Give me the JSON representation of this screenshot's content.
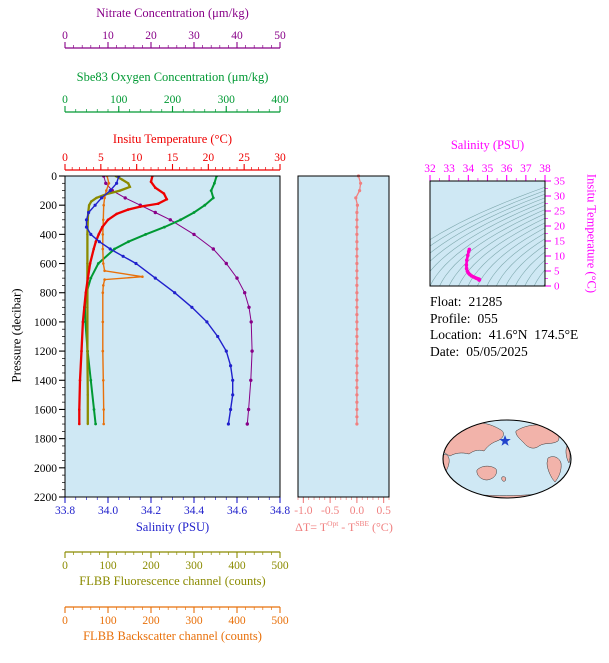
{
  "figure": {
    "bg": "#ffffff",
    "plot_bg": "#cfe8f4",
    "border": "#000000"
  },
  "axes": {
    "nitrate": {
      "title": "Nitrate Concentration (μm/kg)",
      "color": "#880088",
      "range": [
        0,
        50
      ],
      "minor": 2,
      "tick_values": [
        0,
        10,
        20,
        30,
        40,
        50
      ],
      "tick_labels": [
        "0",
        "10",
        "20",
        "30",
        "40",
        "50"
      ]
    },
    "oxygen": {
      "title": "Sbe83 Oxygen Concentration (μm/kg)",
      "color": "#009933",
      "range": [
        0,
        400
      ],
      "minor": 20,
      "tick_values": [
        0,
        100,
        200,
        300,
        400
      ],
      "tick_labels": [
        "0",
        "100",
        "200",
        "300",
        "400"
      ]
    },
    "temperature": {
      "title": "Insitu Temperature (°C)",
      "color": "#ee0000",
      "range": [
        0,
        30
      ],
      "minor": 1,
      "tick_values": [
        0,
        5,
        10,
        15,
        20,
        25,
        30
      ],
      "tick_labels": [
        "0",
        "5",
        "10",
        "15",
        "20",
        "25",
        "30"
      ]
    },
    "pressure": {
      "title": "Pressure (decibar)",
      "color": "#000000",
      "range": [
        0,
        2200
      ],
      "minor": 50,
      "tick_values": [
        0,
        200,
        400,
        600,
        800,
        1000,
        1200,
        1400,
        1600,
        1800,
        2000,
        2200
      ],
      "tick_labels": [
        "0",
        "200",
        "400",
        "600",
        "800",
        "1000",
        "1200",
        "1400",
        "1600",
        "1800",
        "2000",
        "2200"
      ]
    },
    "salinity": {
      "title": "Salinity (PSU)",
      "color": "#2020cc",
      "range": [
        33.8,
        34.8
      ],
      "minor": 0.05,
      "tick_values": [
        33.8,
        34.0,
        34.2,
        34.4,
        34.6,
        34.8
      ],
      "tick_labels": [
        "33.8",
        "34.0",
        "34.2",
        "34.4",
        "34.6",
        "34.8"
      ]
    },
    "fluorescence": {
      "title": "FLBB Fluorescence channel (counts)",
      "color": "#8b8b00",
      "range": [
        0,
        500
      ],
      "minor": 20,
      "tick_values": [
        0,
        100,
        200,
        300,
        400,
        500
      ],
      "tick_labels": [
        "0",
        "100",
        "200",
        "300",
        "400",
        "500"
      ]
    },
    "backscatter": {
      "title": "FLBB Backscatter channel (counts)",
      "color": "#e8700a",
      "range": [
        0,
        500
      ],
      "minor": 20,
      "tick_values": [
        0,
        100,
        200,
        300,
        400,
        500
      ],
      "tick_labels": [
        "0",
        "100",
        "200",
        "300",
        "400",
        "500"
      ]
    },
    "delta_t": {
      "title_parts": {
        "pre": "ΔT= T",
        "sup1": "Opt",
        "mid": " - T",
        "sup2": "SBE",
        "post": " (°C)"
      },
      "color": "#f08080",
      "range": [
        -1.1,
        0.6
      ],
      "minor": 0.1,
      "tick_values": [
        -1.0,
        -0.5,
        0.0,
        0.5
      ],
      "tick_labels": [
        "-1.0",
        "-0.5",
        "0.0",
        "0.5"
      ]
    },
    "ts_salinity": {
      "title": "Salinity (PSU)",
      "color": "#ff00ff",
      "range": [
        32,
        38
      ],
      "minor": 0.5,
      "tick_values": [
        32,
        33,
        34,
        35,
        36,
        37,
        38
      ],
      "tick_labels": [
        "32",
        "33",
        "34",
        "35",
        "36",
        "37",
        "38"
      ]
    },
    "ts_temperature": {
      "title": "Insitu Temperature (°C)",
      "color": "#ff00ff",
      "range": [
        0,
        35
      ],
      "minor": 2.5,
      "tick_values": [
        0,
        5,
        10,
        15,
        20,
        25,
        30,
        35
      ],
      "tick_labels": [
        "0",
        "5",
        "10",
        "15",
        "20",
        "25",
        "30",
        "35"
      ]
    }
  },
  "info": {
    "float_label": "Float:",
    "float_value": "21285",
    "profile_label": "Profile:",
    "profile_value": "055",
    "location_label": "Location:",
    "location_value": "41.6°N  174.5°E",
    "date_label": "Date:",
    "date_value": "05/05/2025"
  },
  "chart_data": [
    {
      "type": "line",
      "title": "Float vertical profiles",
      "ylabel": "Pressure (decibar)",
      "ylim": [
        0,
        2200
      ],
      "y_inverted": true,
      "series": [
        {
          "name": "Salinity (PSU)",
          "axis": "salinity",
          "color": "#2020cc",
          "pressure": [
            0,
            50,
            100,
            150,
            200,
            250,
            300,
            350,
            400,
            450,
            500,
            550,
            600,
            700,
            800,
            900,
            1000,
            1100,
            1200,
            1300,
            1400,
            1500,
            1600,
            1700
          ],
          "values": [
            34.05,
            34.04,
            34.01,
            33.97,
            33.94,
            33.91,
            33.9,
            33.9,
            33.92,
            33.96,
            34.01,
            34.07,
            34.13,
            34.22,
            34.31,
            34.39,
            34.46,
            34.51,
            34.55,
            34.57,
            34.58,
            34.58,
            34.57,
            34.56
          ]
        },
        {
          "name": "Insitu Temperature (°C)",
          "axis": "temperature",
          "color": "#ee0000",
          "pressure": [
            0,
            40,
            80,
            120,
            160,
            190,
            210,
            230,
            260,
            300,
            350,
            400,
            450,
            500,
            600,
            700,
            800,
            900,
            1000,
            1200,
            1400,
            1600,
            1700
          ],
          "values": [
            12.2,
            12.0,
            12.6,
            13.8,
            14.2,
            13.0,
            10.5,
            8.8,
            7.2,
            6.0,
            5.2,
            4.7,
            4.3,
            4.0,
            3.5,
            3.2,
            2.9,
            2.7,
            2.5,
            2.3,
            2.1,
            2.0,
            2.0
          ]
        },
        {
          "name": "Sbe83 Oxygen Concentration (μm/kg)",
          "axis": "oxygen",
          "color": "#009933",
          "pressure": [
            0,
            50,
            100,
            150,
            200,
            250,
            300,
            350,
            400,
            450,
            500,
            600,
            700,
            800,
            900,
            1000,
            1200,
            1400,
            1600,
            1700
          ],
          "values": [
            282,
            278,
            272,
            276,
            260,
            240,
            215,
            185,
            150,
            118,
            92,
            62,
            48,
            40,
            37,
            38,
            42,
            48,
            54,
            57
          ]
        },
        {
          "name": "Nitrate Concentration (μm/kg)",
          "axis": "nitrate",
          "color": "#880088",
          "pressure": [
            0,
            50,
            100,
            150,
            200,
            250,
            300,
            400,
            500,
            600,
            700,
            800,
            900,
            1000,
            1200,
            1400,
            1600,
            1700
          ],
          "values": [
            9,
            9.5,
            11,
            14,
            17.5,
            21,
            24.5,
            30,
            34.5,
            37.5,
            40,
            41.8,
            42.8,
            43.3,
            43.5,
            43.2,
            42.7,
            42.4
          ]
        },
        {
          "name": "FLBB Fluorescence channel (counts)",
          "axis": "fluorescence",
          "color": "#8b8b00",
          "pressure": [
            0,
            25,
            50,
            75,
            100,
            125,
            150,
            175,
            200,
            250,
            300,
            400,
            600,
            900,
            1200,
            1500,
            1700
          ],
          "values": [
            118,
            133,
            147,
            151,
            128,
            96,
            73,
            61,
            56,
            54,
            53,
            52,
            52,
            52,
            52,
            53,
            53
          ]
        },
        {
          "name": "FLBB Backscatter channel (counts)",
          "axis": "backscatter",
          "color": "#e8700a",
          "pressure": [
            0,
            50,
            100,
            150,
            200,
            300,
            400,
            500,
            600,
            650,
            690,
            710,
            750,
            800,
            1000,
            1200,
            1400,
            1600,
            1700
          ],
          "values": [
            98,
            102,
            96,
            92,
            90,
            89,
            88,
            88,
            89,
            92,
            180,
            92,
            89,
            88,
            88,
            88,
            89,
            90,
            90
          ]
        }
      ]
    },
    {
      "type": "scatter",
      "xlabel": "ΔT= TOpt - TSBE (°C)",
      "xlim": [
        -1.0,
        0.5
      ],
      "xticks": [
        -1.0,
        -0.5,
        0.0,
        0.5
      ],
      "color": "#f08080",
      "pressure": [
        0,
        50,
        100,
        150,
        200,
        250,
        300,
        350,
        400,
        450,
        500,
        550,
        600,
        650,
        700,
        750,
        800,
        850,
        900,
        950,
        1000,
        1050,
        1100,
        1150,
        1200,
        1250,
        1300,
        1350,
        1400,
        1450,
        1500,
        1550,
        1600,
        1650,
        1700
      ],
      "values": [
        0.03,
        0.07,
        0.05,
        -0.02,
        0.01,
        0,
        0,
        0,
        0,
        0,
        0,
        0,
        0,
        0,
        0,
        0,
        0,
        0,
        0,
        0,
        0,
        0,
        0,
        0,
        0,
        0,
        0,
        0,
        0,
        0,
        0,
        0,
        0,
        0,
        0
      ]
    },
    {
      "type": "line",
      "title": "T-S diagram",
      "xlabel": "Salinity (PSU)",
      "ylabel": "Insitu Temperature (°C)",
      "xlim": [
        32,
        38
      ],
      "ylim": [
        0,
        35
      ],
      "color": "#ff00cc",
      "salinity": [
        34.05,
        34.02,
        33.97,
        33.92,
        33.9,
        33.91,
        33.95,
        34.01,
        34.08,
        34.16,
        34.25,
        34.34,
        34.42,
        34.49,
        34.54,
        34.57,
        34.58,
        34.57,
        34.56
      ],
      "temperature": [
        12.2,
        11.5,
        10.2,
        8.6,
        7.0,
        5.8,
        4.9,
        4.3,
        3.8,
        3.4,
        3.1,
        2.8,
        2.6,
        2.4,
        2.3,
        2.2,
        2.1,
        2.05,
        2.0
      ]
    },
    {
      "type": "map",
      "star": {
        "lat": 41.6,
        "lon": 174.5
      },
      "ocean_color": "#cfe8f4",
      "land_color": "#f2b3aa",
      "star_color": "#2244cc"
    }
  ]
}
